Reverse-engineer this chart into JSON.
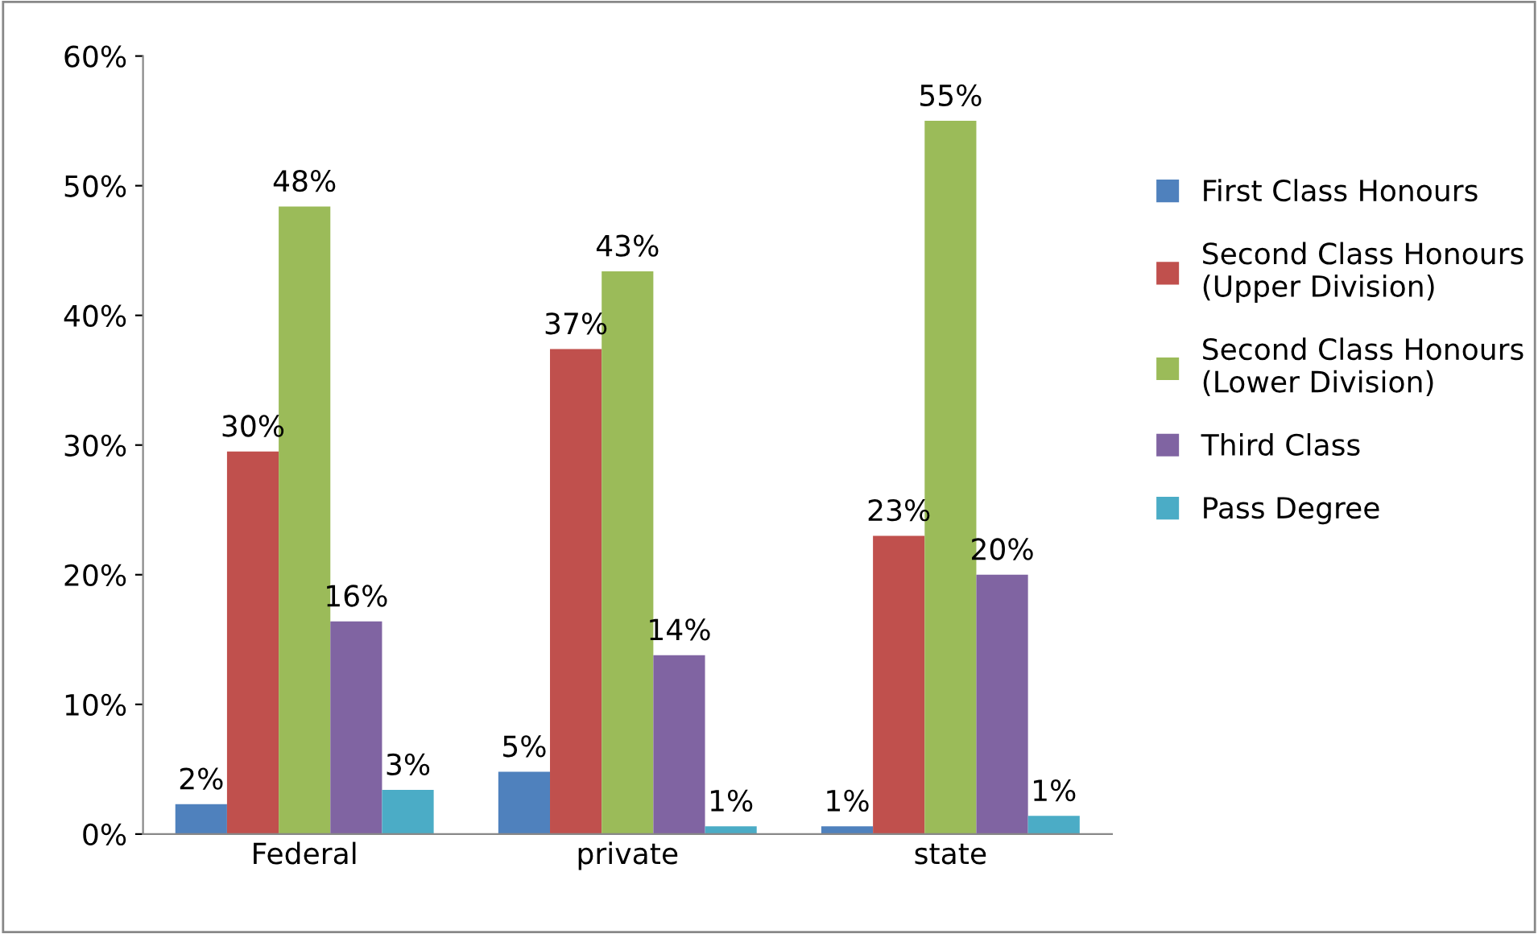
{
  "chart_data": {
    "type": "bar",
    "categories": [
      "Federal",
      "private",
      "state"
    ],
    "series": [
      {
        "name": "First Class Honours",
        "color": "#4f81bd",
        "values": [
          2.3,
          4.8,
          0.6
        ],
        "value_labels": [
          "2%",
          "5%",
          "1%"
        ]
      },
      {
        "name": "Second Class Honours\n(Upper Division)",
        "color": "#c0504d",
        "values": [
          29.5,
          37.4,
          23.0
        ],
        "value_labels": [
          "30%",
          "37%",
          "23%"
        ]
      },
      {
        "name": "Second Class Honours\n(Lower Division)",
        "color": "#9bbb59",
        "values": [
          48.4,
          43.4,
          55.0
        ],
        "value_labels": [
          "48%",
          "43%",
          "55%"
        ]
      },
      {
        "name": "Third Class",
        "color": "#8064a2",
        "values": [
          16.4,
          13.8,
          20.0
        ],
        "value_labels": [
          "16%",
          "14%",
          "20%"
        ]
      },
      {
        "name": "Pass Degree",
        "color": "#4bacc6",
        "values": [
          3.4,
          0.6,
          1.4
        ],
        "value_labels": [
          "3%",
          "1%",
          "1%"
        ]
      }
    ],
    "ylim": [
      0,
      60
    ],
    "yticks": [
      {
        "value": 0,
        "label": "0%"
      },
      {
        "value": 10,
        "label": "10%"
      },
      {
        "value": 20,
        "label": "20%"
      },
      {
        "value": 30,
        "label": "30%"
      },
      {
        "value": 40,
        "label": "40%"
      },
      {
        "value": 50,
        "label": "50%"
      },
      {
        "value": 60,
        "label": "60%"
      }
    ],
    "grid": false,
    "legend": "right"
  }
}
